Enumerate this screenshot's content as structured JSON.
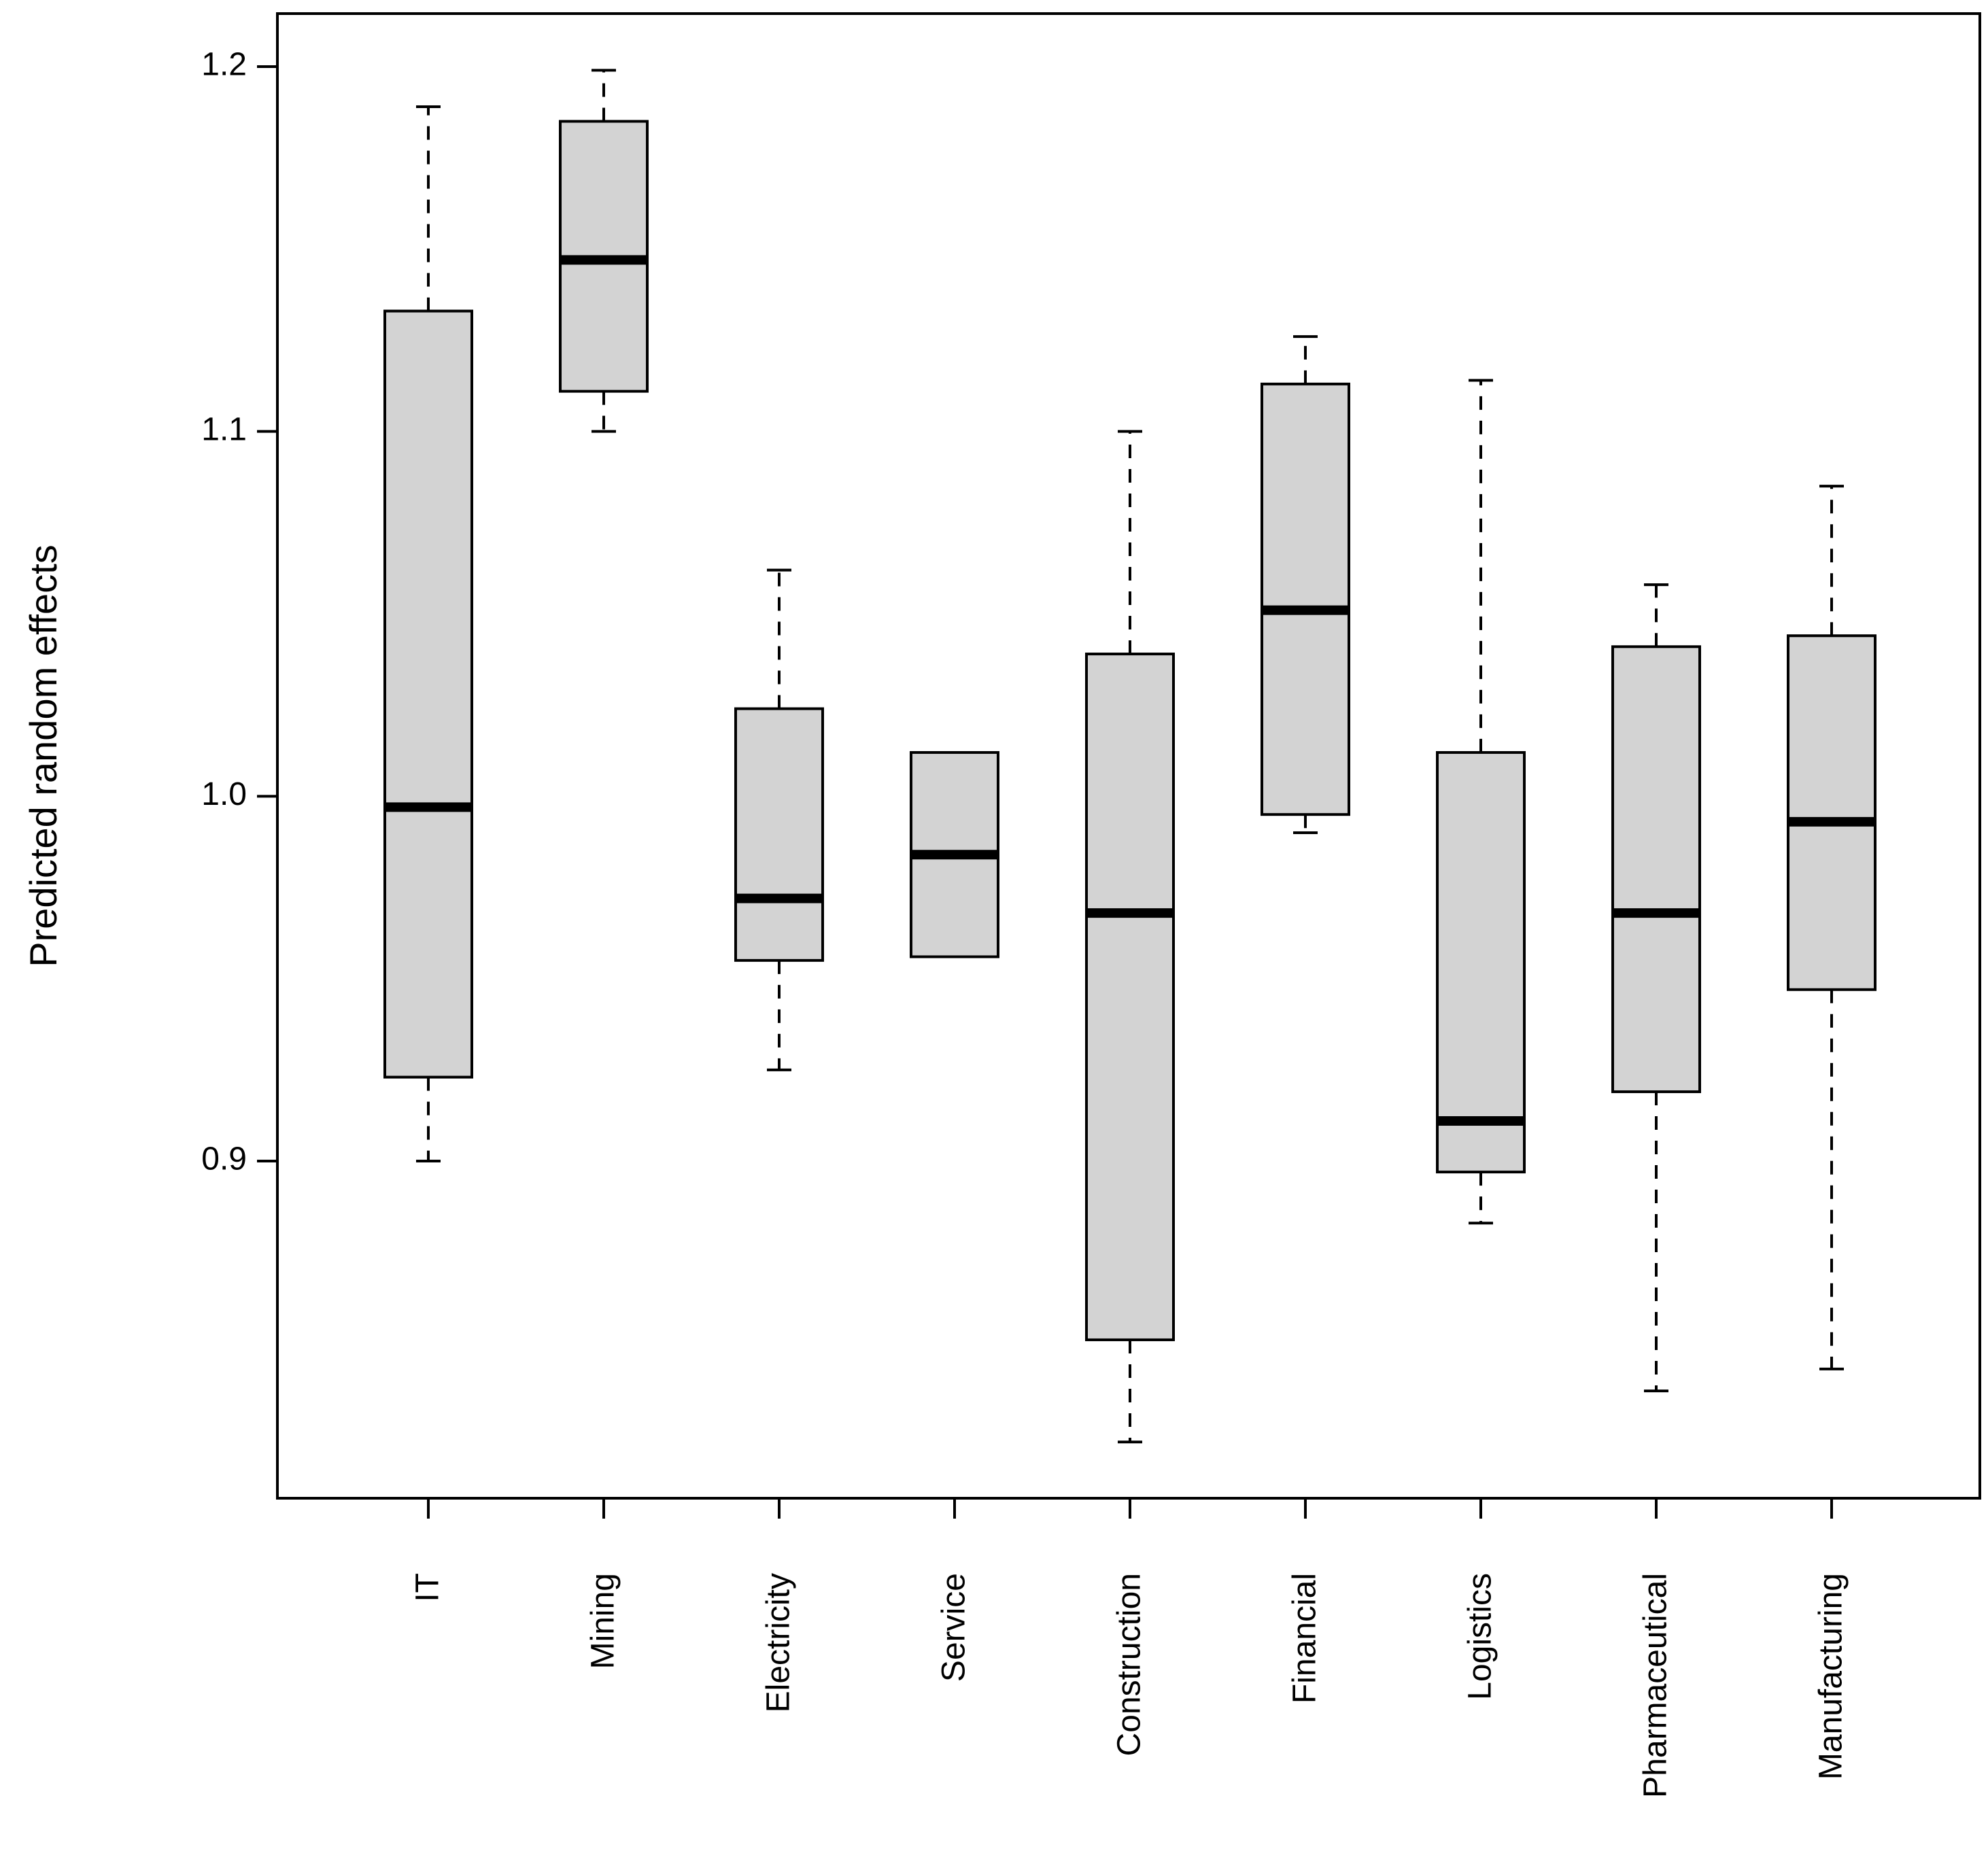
{
  "chart_data": {
    "type": "boxplot",
    "title": "",
    "xlabel": "",
    "ylabel": "Predicted random effects",
    "ylim": [
      0.81,
      1.215
    ],
    "yticks": [
      {
        "value": 0.9,
        "label": "0.9"
      },
      {
        "value": 1.0,
        "label": "1.0"
      },
      {
        "value": 1.1,
        "label": "1.1"
      },
      {
        "value": 1.2,
        "label": "1.2"
      }
    ],
    "categories": [
      "IT",
      "Mining",
      "Electricity",
      "Service",
      "Construction",
      "Financial",
      "Logistics",
      "Pharmaceutical",
      "Manufacturing"
    ],
    "boxes": [
      {
        "name": "IT",
        "min": 0.9,
        "q1": 0.923,
        "median": 0.997,
        "q3": 1.133,
        "max": 1.189
      },
      {
        "name": "Mining",
        "min": 1.1,
        "q1": 1.111,
        "median": 1.147,
        "q3": 1.185,
        "max": 1.199
      },
      {
        "name": "Electricity",
        "min": 0.925,
        "q1": 0.955,
        "median": 0.972,
        "q3": 1.024,
        "max": 1.062
      },
      {
        "name": "Service",
        "min": 0.956,
        "q1": 0.956,
        "median": 0.984,
        "q3": 1.012,
        "max": 1.012
      },
      {
        "name": "Construction",
        "min": 0.823,
        "q1": 0.851,
        "median": 0.968,
        "q3": 1.039,
        "max": 1.1
      },
      {
        "name": "Financial",
        "min": 0.99,
        "q1": 0.995,
        "median": 1.051,
        "q3": 1.113,
        "max": 1.126
      },
      {
        "name": "Logistics",
        "min": 0.883,
        "q1": 0.897,
        "median": 0.911,
        "q3": 1.012,
        "max": 1.114
      },
      {
        "name": "Pharmaceutical",
        "min": 0.837,
        "q1": 0.919,
        "median": 0.968,
        "q3": 1.041,
        "max": 1.058
      },
      {
        "name": "Manufacturing",
        "min": 0.843,
        "q1": 0.947,
        "median": 0.993,
        "q3": 1.044,
        "max": 1.085
      }
    ],
    "box_fill": "#d3d3d3",
    "line_color": "#000000",
    "background": "#ffffff"
  }
}
